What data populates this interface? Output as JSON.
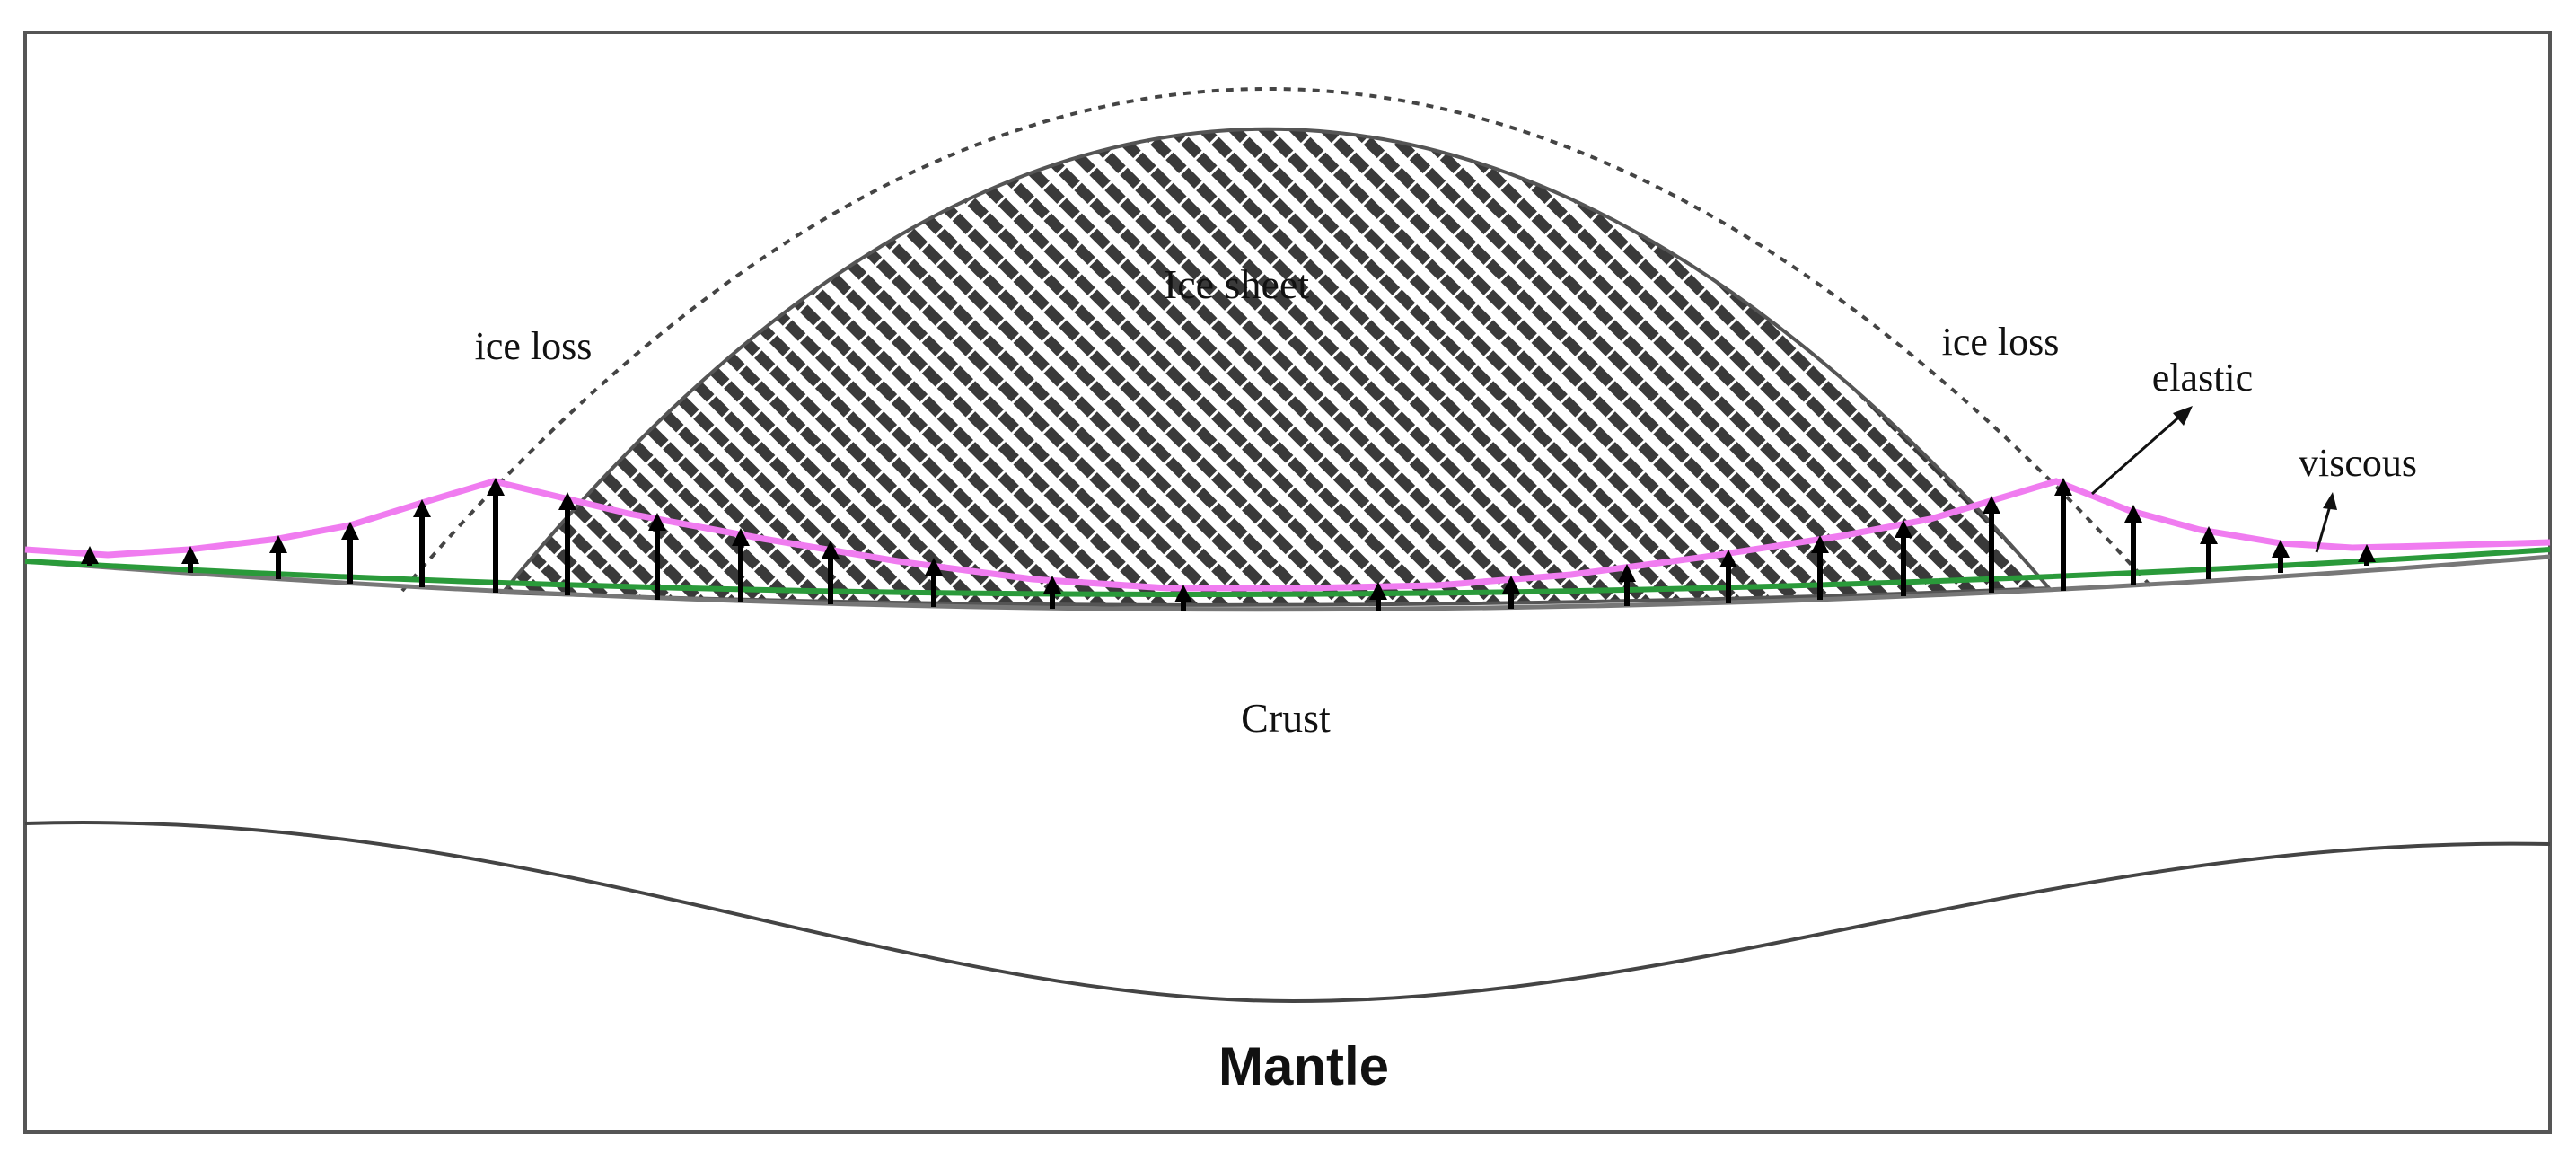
{
  "labels": {
    "ice_sheet": "Ice sheet",
    "ice_loss_left": "ice loss",
    "ice_loss_right": "ice loss",
    "elastic": "elastic",
    "viscous": "viscous",
    "crust": "Crust",
    "mantle": "Mantle"
  },
  "colors": {
    "frame": "#555555",
    "ice_hatch": "#333333",
    "ice_outline": "#555555",
    "dotted_outline": "#444444",
    "elastic_line": "#f07cf0",
    "viscous_line": "#2a9a3a",
    "crust_surface": "#777777",
    "mantle_boundary": "#444444",
    "arrows": "#000000"
  }
}
